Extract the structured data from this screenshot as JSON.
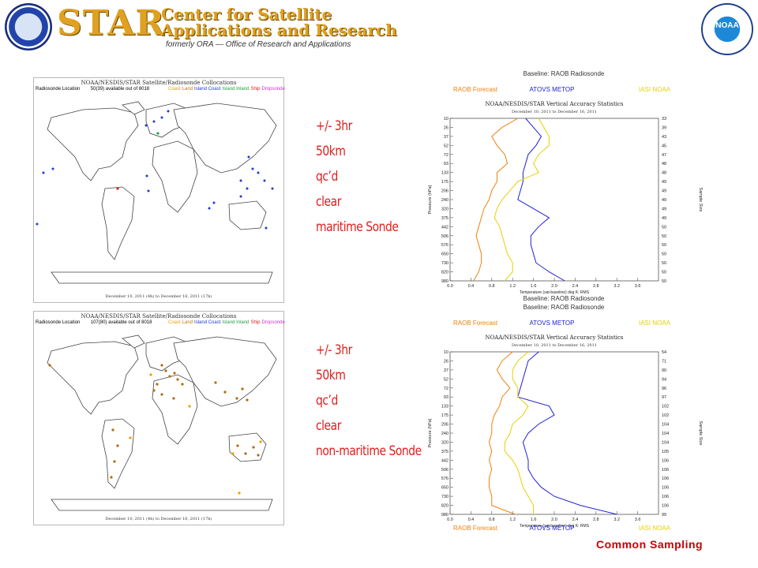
{
  "header": {
    "star": "STAR",
    "line1": "Center for Satellite",
    "line2": "Applications and Research",
    "formerly": "formerly ORA — Office of Research and Applications",
    "noaa": "NOAA"
  },
  "maps": [
    {
      "title": "NOAA/NESDIS/STAR Satellite/Radiosonde Collocations",
      "location_label": "Radiosonde Location",
      "count": "50(39) available out of 8018",
      "legend": [
        {
          "label": "Coast",
          "color": "#e8a000"
        },
        {
          "label": "Land",
          "color": "#c07a00"
        },
        {
          "label": "Island Coast",
          "color": "#1a3ad8"
        },
        {
          "label": "Island Inland",
          "color": "#20a040"
        },
        {
          "label": "Ship",
          "color": "#e02020"
        },
        {
          "label": "Dropsonde",
          "color": "#d030d0"
        }
      ],
      "date": "December 10, 2011 (4h) to December 16, 2011 (17h)"
    },
    {
      "title": "NOAA/NESDIS/STAR Satellite/Radiosonde Collocations",
      "location_label": "Radiosonde Location",
      "count": "107(80) available out of 8018",
      "legend": [
        {
          "label": "Coast",
          "color": "#e8a000"
        },
        {
          "label": "Land",
          "color": "#c07a00"
        },
        {
          "label": "Island Coast",
          "color": "#1a3ad8"
        },
        {
          "label": "Island Inland",
          "color": "#20a040"
        },
        {
          "label": "Ship",
          "color": "#e02020"
        },
        {
          "label": "Dropsonde",
          "color": "#d030d0"
        }
      ],
      "date": "December 10, 2011 (4h) to December 16, 2011 (17h)"
    }
  ],
  "notes": [
    {
      "lines": [
        "+/- 3hr",
        "50km",
        "qc’d",
        "clear",
        "maritime Sonde"
      ]
    },
    {
      "lines": [
        "+/- 3hr",
        "50km",
        "qc’d",
        "clear",
        "non-maritime Sonde"
      ]
    }
  ],
  "footer": "Common Sampling",
  "chart_data": [
    {
      "type": "line",
      "title": "NOAA/NESDIS/STAR Vertical Accuracy Statistics",
      "subtitle": "December 10, 2011 to December 16, 2011",
      "baseline_top": "Baseline:  RAOB Radiosonde",
      "baseline_bottom": "Baseline:  RAOB Radiosonde",
      "legend": [
        {
          "label": "RAOB Forecast",
          "color": "#f08010"
        },
        {
          "label": "ATOVS METOP",
          "color": "#2020d0"
        },
        {
          "label": "IASI NOAA",
          "color": "#e6d000"
        }
      ],
      "xlabel": "Temperature (sat-baseline) deg K: RMS",
      "ylabel": "Pressure (hPa)",
      "y2label": "Sample Size",
      "xlim": [
        0,
        4.0
      ],
      "x_ticks": [
        0.0,
        0.4,
        0.8,
        1.2,
        1.6,
        2.0,
        2.4,
        2.8,
        3.2,
        3.6
      ],
      "pressure_levels": [
        10,
        26,
        37,
        52,
        72,
        93,
        133,
        175,
        206,
        240,
        320,
        375,
        442,
        506,
        576,
        650,
        730,
        820,
        980
      ],
      "sample_size": [
        33,
        39,
        43,
        45,
        47,
        48,
        48,
        49,
        49,
        49,
        49,
        49,
        50,
        50,
        50,
        50,
        50,
        50,
        50
      ],
      "series": [
        {
          "name": "RAOB Forecast",
          "color": "#f08010",
          "values": [
            1.3,
            1.0,
            0.8,
            0.9,
            1.05,
            1.1,
            0.9,
            0.9,
            0.8,
            0.75,
            0.65,
            0.6,
            0.55,
            0.5,
            0.55,
            0.6,
            0.6,
            0.55,
            0.45
          ]
        },
        {
          "name": "ATOVS METOP",
          "color": "#2020d0",
          "values": [
            1.45,
            1.6,
            1.75,
            1.65,
            1.5,
            1.45,
            1.4,
            1.4,
            1.35,
            1.3,
            1.6,
            1.9,
            1.7,
            1.55,
            1.55,
            1.6,
            1.65,
            1.9,
            2.2
          ]
        },
        {
          "name": "IASI NOAA",
          "color": "#e6d000",
          "values": [
            1.7,
            1.8,
            1.9,
            1.9,
            1.7,
            1.6,
            1.7,
            1.3,
            1.15,
            1.0,
            0.9,
            0.85,
            0.95,
            1.0,
            1.05,
            1.1,
            1.2,
            1.2,
            1.05
          ]
        }
      ]
    },
    {
      "type": "line",
      "title": "NOAA/NESDIS/STAR Vertical Accuracy Statistics",
      "subtitle": "December 10, 2011 to December 16, 2011",
      "baseline_top": "Baseline:  RAOB Radiosonde",
      "baseline_bottom": "",
      "legend": [
        {
          "label": "RAOB Forecast",
          "color": "#f08010"
        },
        {
          "label": "ATOVS METOP",
          "color": "#2020d0"
        },
        {
          "label": "IASI NOAA",
          "color": "#e6d000"
        }
      ],
      "xlabel": "Temperature (sat-baseline) deg K: RMS",
      "ylabel": "Pressure (hPa)",
      "y2label": "Sample Size",
      "xlim": [
        0,
        4.0
      ],
      "x_ticks": [
        0.0,
        0.4,
        0.8,
        1.2,
        1.6,
        2.0,
        2.4,
        2.8,
        3.2,
        3.6
      ],
      "pressure_levels": [
        10,
        26,
        37,
        52,
        72,
        93,
        133,
        175,
        206,
        240,
        320,
        375,
        442,
        506,
        576,
        650,
        730,
        820,
        980
      ],
      "sample_size": [
        54,
        71,
        90,
        94,
        96,
        97,
        102,
        102,
        104,
        104,
        104,
        105,
        106,
        106,
        106,
        106,
        106,
        106,
        99
      ],
      "series": [
        {
          "name": "RAOB Forecast",
          "color": "#f08010",
          "values": [
            1.2,
            1.0,
            0.9,
            1.0,
            1.15,
            1.0,
            0.95,
            0.85,
            0.8,
            0.8,
            0.75,
            0.8,
            0.75,
            0.8,
            0.75,
            0.75,
            0.8,
            0.8,
            1.25
          ]
        },
        {
          "name": "ATOVS METOP",
          "color": "#2020d0",
          "values": [
            1.7,
            1.5,
            1.45,
            1.4,
            1.35,
            1.3,
            1.9,
            2.0,
            1.7,
            1.5,
            1.4,
            1.45,
            1.5,
            1.5,
            1.6,
            1.75,
            2.0,
            2.5,
            3.2
          ]
        },
        {
          "name": "IASI NOAA",
          "color": "#e6d000",
          "values": [
            1.5,
            1.3,
            1.2,
            1.2,
            1.3,
            1.3,
            1.5,
            1.4,
            1.2,
            1.15,
            1.05,
            1.05,
            1.2,
            1.3,
            1.35,
            1.4,
            1.5,
            1.6,
            1.6
          ]
        }
      ]
    }
  ]
}
